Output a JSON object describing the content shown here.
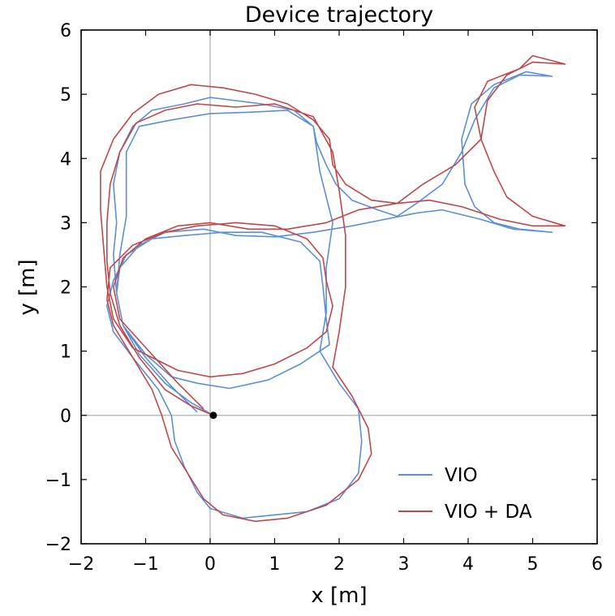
{
  "chart_data": {
    "type": "line",
    "title": "Device trajectory",
    "xlabel": "x [m]",
    "ylabel": "y [m]",
    "xlim": [
      -2,
      6
    ],
    "ylim": [
      -2,
      6
    ],
    "xticks": [
      -2,
      -1,
      0,
      1,
      2,
      3,
      4,
      5,
      6
    ],
    "yticks": [
      -2,
      -1,
      0,
      1,
      2,
      3,
      4,
      5,
      6
    ],
    "xtick_labels": [
      "−2",
      "−1",
      "0",
      "1",
      "2",
      "3",
      "4",
      "5",
      "6"
    ],
    "ytick_labels": [
      "−2",
      "−1",
      "0",
      "1",
      "2",
      "3",
      "4",
      "5",
      "6"
    ],
    "reference_lines": {
      "x": 0,
      "y": 0
    },
    "grid": false,
    "legend_position": "bottom-right",
    "start_marker": {
      "x": 0.05,
      "y": 0
    },
    "series": [
      {
        "name": "VIO",
        "color": "#5b8fd6",
        "points": [
          [
            -0.2,
            0.05
          ],
          [
            -0.6,
            0.45
          ],
          [
            -1.0,
            0.9
          ],
          [
            -1.35,
            1.4
          ],
          [
            -1.45,
            1.9
          ],
          [
            -1.4,
            2.3
          ],
          [
            -1.1,
            2.65
          ],
          [
            -0.7,
            2.85
          ],
          [
            -0.1,
            2.9
          ],
          [
            0.4,
            2.8
          ],
          [
            1.0,
            2.78
          ],
          [
            1.6,
            2.85
          ],
          [
            2.2,
            2.95
          ],
          [
            2.7,
            3.05
          ],
          [
            3.2,
            3.15
          ],
          [
            3.6,
            3.2
          ],
          [
            4.2,
            3.05
          ],
          [
            4.7,
            2.9
          ],
          [
            5.3,
            2.85
          ],
          [
            4.8,
            2.9
          ],
          [
            4.4,
            3.0
          ],
          [
            4.1,
            3.25
          ],
          [
            3.95,
            3.6
          ],
          [
            3.9,
            4.3
          ],
          [
            4.05,
            4.85
          ],
          [
            4.4,
            5.15
          ],
          [
            4.9,
            5.35
          ],
          [
            5.3,
            5.28
          ],
          [
            4.8,
            5.3
          ],
          [
            4.4,
            5.1
          ],
          [
            4.1,
            4.6
          ],
          [
            3.9,
            4.1
          ],
          [
            3.6,
            3.6
          ],
          [
            3.2,
            3.3
          ],
          [
            2.9,
            3.1
          ],
          [
            2.6,
            3.2
          ],
          [
            2.2,
            3.35
          ],
          [
            1.95,
            3.6
          ],
          [
            1.8,
            3.9
          ],
          [
            1.65,
            4.25
          ],
          [
            1.6,
            4.5
          ],
          [
            1.3,
            4.75
          ],
          [
            0.8,
            4.85
          ],
          [
            0.4,
            4.9
          ],
          [
            0.0,
            4.95
          ],
          [
            -0.4,
            4.85
          ],
          [
            -0.9,
            4.75
          ],
          [
            -1.2,
            4.5
          ],
          [
            -1.4,
            4.1
          ],
          [
            -1.5,
            3.6
          ],
          [
            -1.45,
            3.0
          ],
          [
            -1.5,
            2.5
          ],
          [
            -1.45,
            1.9
          ],
          [
            -1.35,
            1.4
          ],
          [
            -1.0,
            0.95
          ],
          [
            -0.6,
            0.6
          ],
          [
            -0.2,
            0.5
          ],
          [
            0.3,
            0.42
          ],
          [
            0.9,
            0.55
          ],
          [
            1.4,
            0.8
          ],
          [
            1.85,
            1.1
          ],
          [
            1.8,
            1.5
          ],
          [
            1.75,
            2.0
          ],
          [
            1.7,
            2.4
          ],
          [
            1.4,
            2.7
          ],
          [
            0.8,
            2.85
          ],
          [
            0.2,
            2.85
          ],
          [
            -0.4,
            2.8
          ],
          [
            -0.9,
            2.75
          ],
          [
            -1.3,
            2.5
          ],
          [
            -1.5,
            2.1
          ],
          [
            -1.6,
            1.7
          ],
          [
            -1.5,
            1.3
          ],
          [
            -1.2,
            0.9
          ],
          [
            -0.8,
            0.4
          ],
          [
            -0.6,
            0.0
          ],
          [
            -0.55,
            -0.4
          ],
          [
            -0.4,
            -0.8
          ],
          [
            -0.2,
            -1.2
          ],
          [
            0.0,
            -1.45
          ],
          [
            0.5,
            -1.6
          ],
          [
            1.0,
            -1.55
          ],
          [
            1.5,
            -1.5
          ],
          [
            2.0,
            -1.3
          ],
          [
            2.3,
            -0.9
          ],
          [
            2.35,
            -0.4
          ],
          [
            2.3,
            0.1
          ],
          [
            2.0,
            0.5
          ],
          [
            1.7,
            1.0
          ],
          [
            1.8,
            1.6
          ],
          [
            1.8,
            2.3
          ],
          [
            1.9,
            3.0
          ],
          [
            1.7,
            3.8
          ],
          [
            1.6,
            4.5
          ],
          [
            1.2,
            4.75
          ],
          [
            0.6,
            4.72
          ],
          [
            0.0,
            4.7
          ],
          [
            -0.6,
            4.6
          ],
          [
            -1.1,
            4.5
          ],
          [
            -1.3,
            4.1
          ],
          [
            -1.3,
            3.6
          ],
          [
            -1.3,
            3.1
          ],
          [
            -1.4,
            2.5
          ],
          [
            -1.45,
            1.9
          ],
          [
            -1.35,
            1.4
          ],
          [
            -1.1,
            0.95
          ],
          [
            -0.7,
            0.5
          ],
          [
            -0.3,
            0.2
          ],
          [
            0.05,
            0.0
          ]
        ]
      },
      {
        "name": "VIO + DA",
        "color": "#c0474a",
        "points": [
          [
            -0.1,
            0.1
          ],
          [
            -0.5,
            0.5
          ],
          [
            -0.95,
            1.0
          ],
          [
            -1.4,
            1.5
          ],
          [
            -1.5,
            2.0
          ],
          [
            -1.35,
            2.45
          ],
          [
            -1.0,
            2.75
          ],
          [
            -0.5,
            2.95
          ],
          [
            0.0,
            3.0
          ],
          [
            0.6,
            2.9
          ],
          [
            1.2,
            2.9
          ],
          [
            1.8,
            3.0
          ],
          [
            2.3,
            3.2
          ],
          [
            2.9,
            3.3
          ],
          [
            3.4,
            3.35
          ],
          [
            3.9,
            3.25
          ],
          [
            4.5,
            3.05
          ],
          [
            5.0,
            2.95
          ],
          [
            5.5,
            2.95
          ],
          [
            5.0,
            3.1
          ],
          [
            4.6,
            3.4
          ],
          [
            4.4,
            3.8
          ],
          [
            4.2,
            4.3
          ],
          [
            4.1,
            4.8
          ],
          [
            4.3,
            5.2
          ],
          [
            4.8,
            5.4
          ],
          [
            5.0,
            5.6
          ],
          [
            5.5,
            5.47
          ],
          [
            5.0,
            5.5
          ],
          [
            4.6,
            5.3
          ],
          [
            4.3,
            4.9
          ],
          [
            4.2,
            4.3
          ],
          [
            3.8,
            3.9
          ],
          [
            3.3,
            3.6
          ],
          [
            2.9,
            3.3
          ],
          [
            2.5,
            3.35
          ],
          [
            2.1,
            3.6
          ],
          [
            1.9,
            3.9
          ],
          [
            1.85,
            4.3
          ],
          [
            1.6,
            4.6
          ],
          [
            1.2,
            4.85
          ],
          [
            0.7,
            5.0
          ],
          [
            0.2,
            5.1
          ],
          [
            -0.3,
            5.15
          ],
          [
            -0.8,
            5.0
          ],
          [
            -1.2,
            4.7
          ],
          [
            -1.5,
            4.3
          ],
          [
            -1.7,
            3.8
          ],
          [
            -1.7,
            3.2
          ],
          [
            -1.65,
            2.6
          ],
          [
            -1.6,
            2.0
          ],
          [
            -1.5,
            1.5
          ],
          [
            -1.2,
            1.05
          ],
          [
            -0.8,
            0.85
          ],
          [
            -0.5,
            0.7
          ],
          [
            0.0,
            0.6
          ],
          [
            0.5,
            0.65
          ],
          [
            1.0,
            0.8
          ],
          [
            1.5,
            1.05
          ],
          [
            1.8,
            1.3
          ],
          [
            1.9,
            1.7
          ],
          [
            1.8,
            2.1
          ],
          [
            1.75,
            2.45
          ],
          [
            1.5,
            2.75
          ],
          [
            1.0,
            2.95
          ],
          [
            0.4,
            3.0
          ],
          [
            -0.2,
            2.95
          ],
          [
            -0.7,
            2.85
          ],
          [
            -1.2,
            2.65
          ],
          [
            -1.55,
            2.3
          ],
          [
            -1.6,
            1.8
          ],
          [
            -1.5,
            1.4
          ],
          [
            -1.2,
            0.9
          ],
          [
            -0.9,
            0.4
          ],
          [
            -0.75,
            0.0
          ],
          [
            -0.6,
            -0.5
          ],
          [
            -0.35,
            -0.9
          ],
          [
            -0.1,
            -1.3
          ],
          [
            0.2,
            -1.55
          ],
          [
            0.7,
            -1.65
          ],
          [
            1.2,
            -1.6
          ],
          [
            1.8,
            -1.4
          ],
          [
            2.3,
            -1.0
          ],
          [
            2.5,
            -0.6
          ],
          [
            2.45,
            -0.2
          ],
          [
            2.2,
            0.3
          ],
          [
            1.9,
            0.75
          ],
          [
            2.0,
            1.3
          ],
          [
            2.1,
            2.0
          ],
          [
            2.1,
            2.8
          ],
          [
            2.0,
            3.5
          ],
          [
            1.9,
            4.1
          ],
          [
            1.6,
            4.65
          ],
          [
            1.0,
            4.85
          ],
          [
            0.4,
            4.8
          ],
          [
            -0.2,
            4.85
          ],
          [
            -0.7,
            4.75
          ],
          [
            -1.15,
            4.55
          ],
          [
            -1.4,
            4.1
          ],
          [
            -1.55,
            3.6
          ],
          [
            -1.6,
            3.0
          ],
          [
            -1.6,
            2.4
          ],
          [
            -1.55,
            1.9
          ],
          [
            -1.4,
            1.4
          ],
          [
            -1.1,
            0.9
          ],
          [
            -0.7,
            0.4
          ],
          [
            -0.3,
            0.15
          ],
          [
            0.05,
            0.0
          ]
        ]
      }
    ]
  }
}
